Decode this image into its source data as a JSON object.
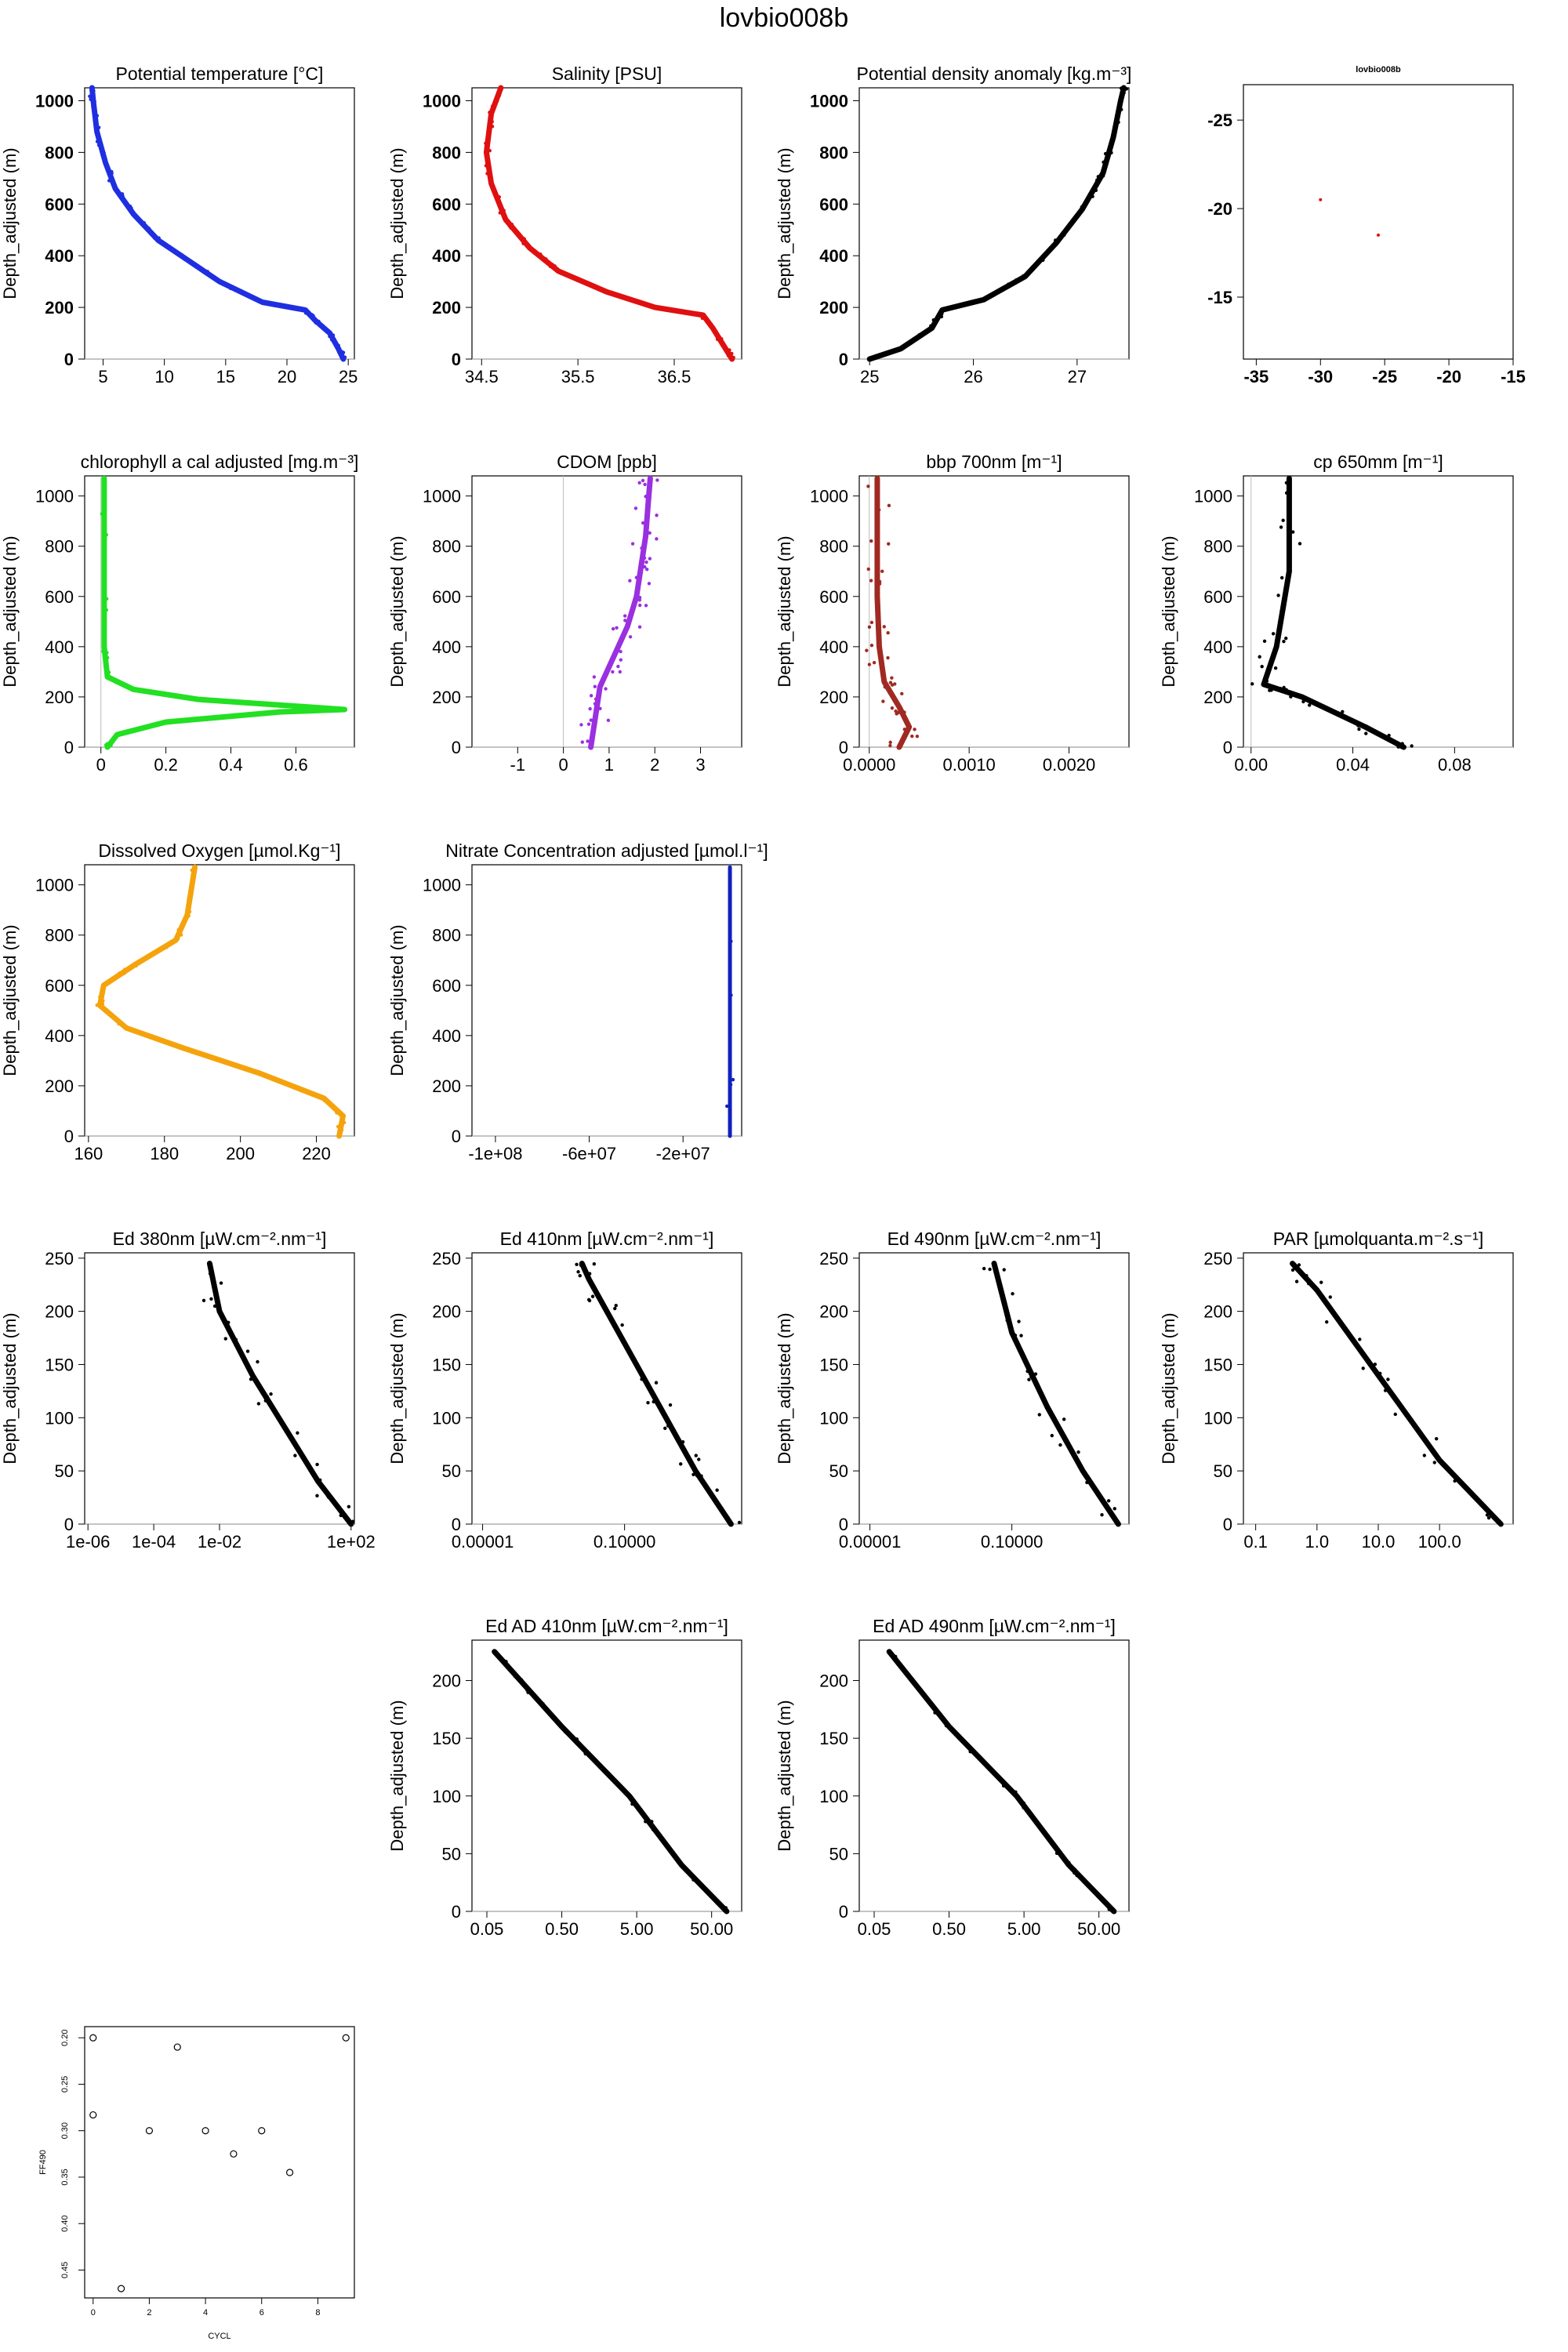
{
  "page_title": "lovbio008b",
  "chart_data": [
    {
      "type": "scatter",
      "title": "Potential temperature [°C]",
      "ylabel": "Depth_adjusted (m)",
      "xlim": [
        3.5,
        25.5
      ],
      "ylim": [
        1050,
        0
      ],
      "xticks": [
        5,
        10,
        15,
        20,
        25
      ],
      "yticks": [
        0,
        200,
        400,
        600,
        800,
        1000
      ],
      "color": "#1f2fe0",
      "grid": true,
      "profile": [
        [
          24.6,
          0
        ],
        [
          24.2,
          40
        ],
        [
          23.5,
          100
        ],
        [
          22.3,
          150
        ],
        [
          21.5,
          190
        ],
        [
          18,
          220
        ],
        [
          14.5,
          300
        ],
        [
          12,
          380
        ],
        [
          9.5,
          460
        ],
        [
          7.5,
          560
        ],
        [
          6,
          660
        ],
        [
          5.2,
          760
        ],
        [
          4.5,
          880
        ],
        [
          4.2,
          1000
        ],
        [
          4.1,
          1050
        ]
      ]
    },
    {
      "type": "scatter",
      "title": "Salinity [PSU]",
      "ylabel": "Depth_adjusted (m)",
      "xlim": [
        34.4,
        37.2
      ],
      "ylim": [
        1050,
        0
      ],
      "xticks": [
        34.5,
        35.5,
        36.5
      ],
      "yticks": [
        0,
        200,
        400,
        600,
        800,
        1000
      ],
      "color": "#e01010",
      "grid": true,
      "profile": [
        [
          37.1,
          0
        ],
        [
          37.0,
          60
        ],
        [
          36.9,
          120
        ],
        [
          36.8,
          170
        ],
        [
          36.3,
          200
        ],
        [
          35.8,
          260
        ],
        [
          35.3,
          340
        ],
        [
          35.0,
          430
        ],
        [
          34.75,
          540
        ],
        [
          34.6,
          680
        ],
        [
          34.55,
          800
        ],
        [
          34.6,
          950
        ],
        [
          34.7,
          1050
        ]
      ]
    },
    {
      "type": "scatter",
      "title": "Potential density anomaly [kg.m⁻³]",
      "ylabel": "Depth_adjusted (m)",
      "xlim": [
        24.9,
        27.5
      ],
      "ylim": [
        1050,
        0
      ],
      "xticks": [
        25.0,
        26.0,
        27.0
      ],
      "yticks": [
        0,
        200,
        400,
        600,
        800,
        1000
      ],
      "color": "#000000",
      "grid": true,
      "profile": [
        [
          25.0,
          0
        ],
        [
          25.3,
          40
        ],
        [
          25.6,
          120
        ],
        [
          25.7,
          190
        ],
        [
          26.1,
          230
        ],
        [
          26.5,
          320
        ],
        [
          26.8,
          450
        ],
        [
          27.05,
          580
        ],
        [
          27.25,
          720
        ],
        [
          27.35,
          860
        ],
        [
          27.42,
          1000
        ],
        [
          27.45,
          1050
        ]
      ]
    },
    {
      "type": "scatter",
      "title": "lovbio008b",
      "ylabel": "",
      "xlim": [
        -36,
        -15
      ],
      "ylim": [
        -27,
        -11.5
      ],
      "xticks": [
        -35,
        -30,
        -25,
        -20,
        -15
      ],
      "yticks": [
        -15,
        -20,
        -25
      ],
      "color": "#e01010",
      "grid": false,
      "points": [
        [
          -25.5,
          -18.5
        ],
        [
          -30,
          -20.5
        ]
      ]
    },
    {
      "type": "scatter",
      "title": "chlorophyll a cal adjusted [mg.m⁻³]",
      "ylabel": "Depth_adjusted (m)",
      "xlim": [
        -0.05,
        0.78
      ],
      "ylim": [
        1080,
        0
      ],
      "xticks": [
        0.0,
        0.2,
        0.4,
        0.6
      ],
      "yticks": [
        0,
        200,
        400,
        600,
        800,
        1000
      ],
      "color": "#22e022",
      "grid": true,
      "profile": [
        [
          0.02,
          0
        ],
        [
          0.05,
          50
        ],
        [
          0.2,
          100
        ],
        [
          0.55,
          140
        ],
        [
          0.75,
          150
        ],
        [
          0.3,
          190
        ],
        [
          0.1,
          230
        ],
        [
          0.02,
          280
        ],
        [
          0.01,
          400
        ],
        [
          0.01,
          1070
        ]
      ]
    },
    {
      "type": "scatter",
      "title": "CDOM [ppb]",
      "ylabel": "Depth_adjusted (m)",
      "xlim": [
        -2,
        3.9
      ],
      "ylim": [
        1080,
        0
      ],
      "xticks": [
        -1,
        0,
        1,
        2,
        3
      ],
      "yticks": [
        0,
        200,
        400,
        600,
        800,
        1000
      ],
      "color": "#9a30e0",
      "grid": true,
      "profile": [
        [
          0.6,
          0
        ],
        [
          0.7,
          120
        ],
        [
          0.8,
          240
        ],
        [
          1.1,
          360
        ],
        [
          1.4,
          480
        ],
        [
          1.6,
          600
        ],
        [
          1.7,
          720
        ],
        [
          1.8,
          840
        ],
        [
          1.85,
          960
        ],
        [
          1.9,
          1070
        ]
      ]
    },
    {
      "type": "scatter",
      "title": "bbp 700nm [m⁻¹]",
      "ylabel": "Depth_adjusted (m)",
      "xlim": [
        -0.0001,
        0.0026
      ],
      "ylim": [
        1080,
        0
      ],
      "xticks": [
        0.0,
        0.001,
        0.002
      ],
      "xticklabels": [
        "0.0000",
        "0.0010",
        "0.0020"
      ],
      "yticks": [
        0,
        200,
        400,
        600,
        800,
        1000
      ],
      "color": "#a02a22",
      "grid": true,
      "profile": [
        [
          0.0003,
          0
        ],
        [
          0.0004,
          80
        ],
        [
          0.0003,
          160
        ],
        [
          0.00015,
          260
        ],
        [
          0.0001,
          400
        ],
        [
          8e-05,
          600
        ],
        [
          8e-05,
          800
        ],
        [
          8e-05,
          1070
        ]
      ]
    },
    {
      "type": "scatter",
      "title": "cp 650mm [m⁻¹]",
      "ylabel": "Depth_adjusted (m)",
      "xlim": [
        -0.003,
        0.103
      ],
      "ylim": [
        1080,
        0
      ],
      "xticks": [
        0.0,
        0.04,
        0.08
      ],
      "xticklabels": [
        "0.00",
        "0.04",
        "0.08"
      ],
      "yticks": [
        0,
        200,
        400,
        600,
        800,
        1000
      ],
      "color": "#000000",
      "grid": true,
      "profile": [
        [
          0.06,
          0
        ],
        [
          0.045,
          80
        ],
        [
          0.02,
          200
        ],
        [
          0.005,
          250
        ],
        [
          0.01,
          400
        ],
        [
          0.015,
          700
        ],
        [
          0.015,
          1070
        ]
      ]
    },
    {
      "type": "scatter",
      "title": "Dissolved Oxygen [µmol.Kg⁻¹]",
      "ylabel": "Depth_adjusted (m)",
      "xlim": [
        159,
        230
      ],
      "ylim": [
        1080,
        0
      ],
      "xticks": [
        160,
        180,
        200,
        220
      ],
      "yticks": [
        0,
        200,
        400,
        600,
        800,
        1000
      ],
      "color": "#f5a30c",
      "grid": true,
      "profile": [
        [
          226,
          0
        ],
        [
          227,
          80
        ],
        [
          222,
          150
        ],
        [
          205,
          250
        ],
        [
          185,
          350
        ],
        [
          170,
          430
        ],
        [
          163,
          520
        ],
        [
          164,
          600
        ],
        [
          172,
          680
        ],
        [
          183,
          780
        ],
        [
          186,
          880
        ],
        [
          188,
          1070
        ]
      ]
    },
    {
      "type": "scatter",
      "title": "Nitrate Concentration adjusted [µmol.l⁻¹]",
      "ylabel": "Depth_adjusted (m)",
      "xlim": [
        -110000000,
        5000000
      ],
      "ylim": [
        1080,
        0
      ],
      "xticks": [
        -100000000,
        -60000000,
        -20000000
      ],
      "xticklabels": [
        "-1e+08",
        "-6e+07",
        "-2e+07"
      ],
      "yticks": [
        0,
        200,
        400,
        600,
        800,
        1000
      ],
      "color": "#1020c0",
      "grid": true,
      "profile": [
        [
          0,
          0
        ],
        [
          0,
          1070
        ]
      ]
    },
    {
      "type": "scatter",
      "title": "Ed 380nm [µW.cm⁻².nm⁻¹]",
      "ylabel": "Depth_adjusted (m)",
      "scale": "log",
      "xlim": [
        -6.1,
        2.1
      ],
      "ylim": [
        255,
        0
      ],
      "xticks": [
        -6,
        -4,
        -2,
        2
      ],
      "xticklabels": [
        "1e-06",
        "1e-04",
        "1e-02",
        "1e+02"
      ],
      "yticks": [
        0,
        50,
        100,
        150,
        200,
        250
      ],
      "color": "#000000",
      "grid": true,
      "profile": [
        [
          2,
          0
        ],
        [
          1,
          40
        ],
        [
          0,
          90
        ],
        [
          -1,
          140
        ],
        [
          -2,
          200
        ],
        [
          -2.3,
          245
        ]
      ]
    },
    {
      "type": "scatter",
      "title": "Ed 410nm [µW.cm⁻².nm⁻¹]",
      "ylabel": "Depth_adjusted (m)",
      "scale": "log",
      "xlim": [
        -5.3,
        2.3
      ],
      "ylim": [
        255,
        0
      ],
      "xticks": [
        -5,
        -1
      ],
      "xticklabels": [
        "0.00001",
        "0.10000"
      ],
      "yticks": [
        0,
        50,
        100,
        150,
        200,
        250
      ],
      "color": "#000000",
      "grid": true,
      "profile": [
        [
          2,
          0
        ],
        [
          1,
          50
        ],
        [
          0,
          110
        ],
        [
          -1,
          170
        ],
        [
          -2,
          230
        ],
        [
          -2.2,
          245
        ]
      ]
    },
    {
      "type": "scatter",
      "title": "Ed 490nm [µW.cm⁻².nm⁻¹]",
      "ylabel": "Depth_adjusted (m)",
      "scale": "log",
      "xlim": [
        -5.3,
        2.3
      ],
      "ylim": [
        255,
        0
      ],
      "xticks": [
        -5,
        -1
      ],
      "xticklabels": [
        "0.00001",
        "0.10000"
      ],
      "yticks": [
        0,
        50,
        100,
        150,
        200,
        250
      ],
      "color": "#000000",
      "grid": true,
      "profile": [
        [
          2,
          0
        ],
        [
          1,
          50
        ],
        [
          0,
          110
        ],
        [
          -1,
          180
        ],
        [
          -1.5,
          245
        ]
      ]
    },
    {
      "type": "scatter",
      "title": "PAR [µmolquanta.m⁻².s⁻¹]",
      "ylabel": "Depth_adjusted (m)",
      "scale": "log",
      "xlim": [
        -1.2,
        3.2
      ],
      "ylim": [
        255,
        0
      ],
      "xticks": [
        -1,
        0,
        1,
        2
      ],
      "xticklabels": [
        "0.1",
        "1.0",
        "10.0",
        "100.0"
      ],
      "yticks": [
        0,
        50,
        100,
        150,
        200,
        250
      ],
      "color": "#000000",
      "grid": true,
      "profile": [
        [
          3,
          0
        ],
        [
          2,
          60
        ],
        [
          1,
          140
        ],
        [
          0,
          220
        ],
        [
          -0.4,
          245
        ]
      ]
    },
    {
      "type": "scatter",
      "title": "Ed AD 410nm [µW.cm⁻².nm⁻¹]",
      "ylabel": "Depth_adjusted (m)",
      "scale": "log",
      "xlim": [
        -1.5,
        2.1
      ],
      "ylim": [
        235,
        0
      ],
      "xticks": [
        -1.301,
        -0.301,
        0.699,
        1.699
      ],
      "xticklabels": [
        "0.05",
        "0.50",
        "5.00",
        "50.00"
      ],
      "yticks": [
        0,
        50,
        100,
        150,
        200
      ],
      "color": "#000000",
      "grid": true,
      "profile": [
        [
          1.9,
          0
        ],
        [
          1.3,
          40
        ],
        [
          0.6,
          100
        ],
        [
          -0.3,
          160
        ],
        [
          -1.2,
          225
        ]
      ]
    },
    {
      "type": "scatter",
      "title": "Ed AD 490nm [µW.cm⁻².nm⁻¹]",
      "ylabel": "Depth_adjusted (m)",
      "scale": "log",
      "xlim": [
        -1.5,
        2.1
      ],
      "ylim": [
        235,
        0
      ],
      "xticks": [
        -1.301,
        -0.301,
        0.699,
        1.699
      ],
      "xticklabels": [
        "0.05",
        "0.50",
        "5.00",
        "50.00"
      ],
      "yticks": [
        0,
        50,
        100,
        150,
        200
      ],
      "color": "#000000",
      "grid": true,
      "profile": [
        [
          1.9,
          0
        ],
        [
          1.3,
          40
        ],
        [
          0.6,
          100
        ],
        [
          -0.3,
          160
        ],
        [
          -1.1,
          225
        ]
      ]
    },
    {
      "type": "scatter",
      "title": "",
      "xlabel": "CYCL",
      "ylabel": "FF490",
      "xlim": [
        -0.3,
        9.3
      ],
      "ylim": [
        0.188,
        0.48
      ],
      "xticks": [
        0,
        2,
        4,
        6,
        8
      ],
      "yticks": [
        0.2,
        0.25,
        0.3,
        0.35,
        0.4,
        0.45
      ],
      "xticklabels": [
        "0",
        "2",
        "4",
        "6",
        "8"
      ],
      "yticklabels": [
        "0.20",
        "0.25",
        "0.30",
        "0.35",
        "0.40",
        "0.45"
      ],
      "color": "#000000",
      "grid": false,
      "points": [
        [
          0,
          0.2
        ],
        [
          0,
          0.283
        ],
        [
          1,
          0.47
        ],
        [
          2,
          0.3
        ],
        [
          3,
          0.21
        ],
        [
          4,
          0.3
        ],
        [
          5,
          0.325
        ],
        [
          6,
          0.3
        ],
        [
          7,
          0.345
        ],
        [
          9,
          0.2
        ]
      ]
    }
  ]
}
